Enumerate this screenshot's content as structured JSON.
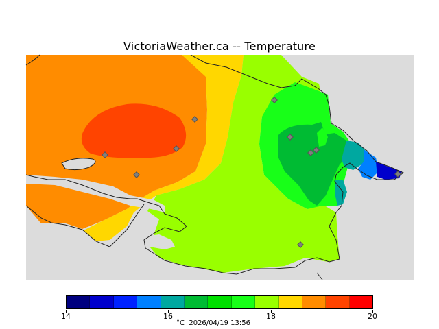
{
  "title": "VictoriaWeather.ca -- Temperature",
  "legend": {
    "colors": [
      "#00007f",
      "#0000cc",
      "#0022ff",
      "#0080ff",
      "#00a8a0",
      "#00bb33",
      "#00e000",
      "#18ff18",
      "#99ff00",
      "#ffd700",
      "#ff8c00",
      "#ff4400",
      "#ff0000"
    ],
    "ticks": [
      "14",
      "16",
      "18",
      "20"
    ],
    "unit": "°C",
    "timestamp": "2026/04/19 13:56"
  },
  "colors": {
    "land_no_data": "#dcdcdc",
    "orange": "#ff8c00",
    "red_orange": "#ff4400",
    "yellow": "#ffd700",
    "yellow_green": "#99ff00",
    "green": "#18ff18",
    "dark_green": "#00bb33",
    "teal": "#00a8a0",
    "blue": "#0080ff",
    "dark_blue": "#0000cc"
  }
}
